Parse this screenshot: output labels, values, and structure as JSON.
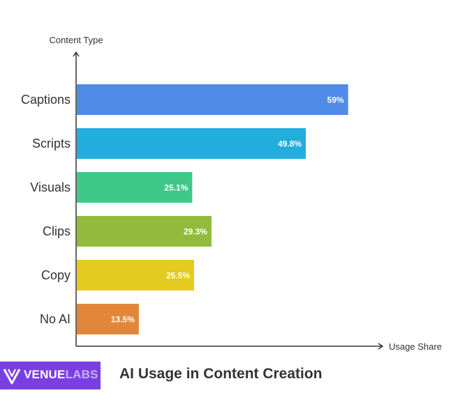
{
  "chart_data": {
    "type": "bar",
    "orientation": "horizontal",
    "title": "AI Usage in Content Creation",
    "ylabel": "Content Type",
    "xlabel": "Usage Share",
    "categories": [
      "Captions",
      "Scripts",
      "Visuals",
      "Clips",
      "Copy",
      "No AI"
    ],
    "values": [
      59,
      49.8,
      25.1,
      29.3,
      25.5,
      13.5
    ],
    "value_labels": [
      "59%",
      "49.8%",
      "25.1%",
      "29.3%",
      "25.5%",
      "13.5%"
    ],
    "colors": [
      "#4f8be7",
      "#22aedd",
      "#3ec887",
      "#92bb3c",
      "#e3cb20",
      "#e2873a"
    ],
    "xlim": [
      0,
      85
    ],
    "grid": false,
    "legend": "none"
  },
  "brand": {
    "name_part1": "VENUE",
    "name_part2": "LABS",
    "color": "#7a3fe0"
  }
}
